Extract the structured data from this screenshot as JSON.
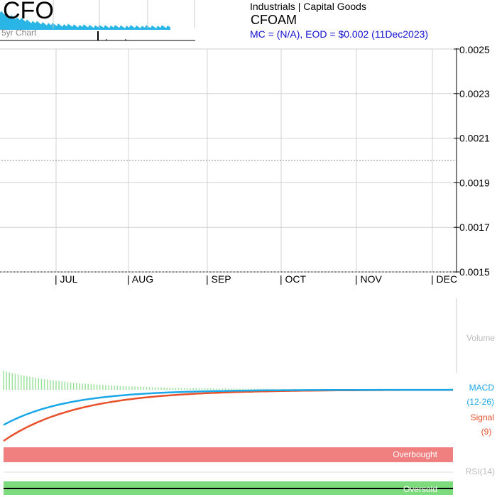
{
  "header": {
    "ticker": "CFO",
    "five_year_label": "5yr Chart",
    "sector": "Industrials | Capital Goods",
    "symbol": "CFOAM",
    "market_info": "MC = (N/A), EOD = $0.002 (11Dec2023)"
  },
  "colors": {
    "macd": "#1aa7e8",
    "signal": "#e8502a",
    "histogram": "#9be09b",
    "overbought": "#f08080",
    "oversold": "#7ddb7d",
    "mini_chart": "#29b6e6",
    "market_info": "#1010d0"
  },
  "chart_data": [
    {
      "type": "line",
      "title": "",
      "price": 0.002,
      "ylim": [
        0.0015,
        0.0025
      ],
      "yticks": [
        "0.0025",
        "0.0023",
        "0.0021",
        "0.0019",
        "0.0017",
        "0.0015"
      ],
      "x_tick_labels": [
        "| JUL",
        "| AUG",
        "| SEP",
        "| OCT",
        "| NOV",
        "| DEC"
      ],
      "grid": true
    },
    {
      "type": "bar",
      "label": "Volume"
    },
    {
      "type": "line",
      "labels": [
        "MACD",
        "(12-26)",
        "Signal",
        "(9)"
      ],
      "series": [
        {
          "name": "MACD",
          "start": -0.00055,
          "end": 0.0
        },
        {
          "name": "Signal",
          "start": -0.0008,
          "end": 0.0
        }
      ],
      "histogram_bars": 155
    },
    {
      "type": "area",
      "label": "RSI(14)",
      "bands": [
        "Overbought",
        "Oversold"
      ]
    }
  ]
}
